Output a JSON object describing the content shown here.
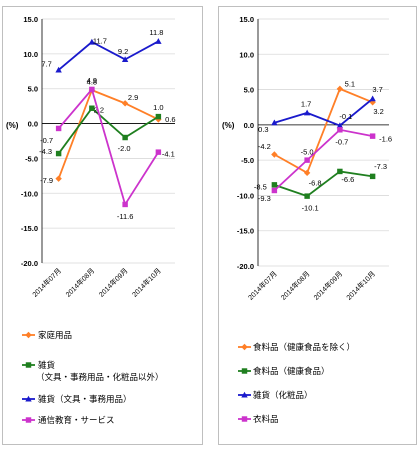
{
  "chart_data": [
    {
      "type": "line",
      "ylabel": "(%)",
      "ylim": [
        -20.0,
        15.0
      ],
      "y_ticks": [
        "15.0",
        "10.0",
        "5.0",
        "0.0",
        "-5.0",
        "-10.0",
        "-15.0",
        "-20.0"
      ],
      "categories": [
        "2014年07月",
        "2014年08月",
        "2014年09月",
        "2014年10月"
      ],
      "series": [
        {
          "name": "家庭用品",
          "color": "#ff7f27",
          "marker": "diamond",
          "values": [
            -7.9,
            4.8,
            2.9,
            0.6
          ],
          "labels": [
            "-7.9",
            "4.8",
            "2.9",
            "0.6"
          ]
        },
        {
          "name": "雑貨（文具・事務用品・化粧品以外）",
          "color": "#1f7f1f",
          "marker": "square",
          "values": [
            -4.3,
            2.2,
            -2.0,
            1.0
          ],
          "labels": [
            "-4.3",
            "2.2",
            "-2.0",
            "1.0"
          ]
        },
        {
          "name": "雑貨（文具・事務用品）",
          "color": "#1a1acc",
          "marker": "triangle",
          "values": [
            7.7,
            11.7,
            9.2,
            11.8
          ],
          "labels": [
            "7.7",
            "11.7",
            "9.2",
            "11.8"
          ]
        },
        {
          "name": "通信教育・サービス",
          "color": "#cc33cc",
          "marker": "square",
          "values": [
            -0.7,
            4.9,
            -11.6,
            -4.1
          ],
          "labels": [
            "-0.7",
            "4.9",
            "-11.6",
            "-4.1"
          ]
        }
      ]
    },
    {
      "type": "line",
      "ylabel": "(%)",
      "ylim": [
        -20.0,
        15.0
      ],
      "y_ticks": [
        "15.0",
        "10.0",
        "5.0",
        "0.0",
        "-5.0",
        "-10.0",
        "-15.0",
        "-20.0"
      ],
      "categories": [
        "2014年07月",
        "2014年08月",
        "2014年09月",
        "2014年10月"
      ],
      "series": [
        {
          "name": "食料品（健康食品を除く）",
          "color": "#ff7f27",
          "marker": "diamond",
          "values": [
            -4.2,
            -6.8,
            5.1,
            3.2
          ],
          "labels": [
            "-4.2",
            "-6.8",
            "5.1",
            "3.2"
          ]
        },
        {
          "name": "食料品（健康食品）",
          "color": "#1f7f1f",
          "marker": "square",
          "values": [
            -8.5,
            -10.1,
            -6.6,
            -7.3
          ],
          "labels": [
            "-8.5",
            "-10.1",
            "-6.6",
            "-7.3"
          ]
        },
        {
          "name": "雑貨（化粧品）",
          "color": "#1a1acc",
          "marker": "triangle",
          "values": [
            0.3,
            1.7,
            -0.1,
            3.7
          ],
          "labels": [
            "0.3",
            "1.7",
            "-0.1",
            "3.7"
          ]
        },
        {
          "name": "衣料品",
          "color": "#cc33cc",
          "marker": "square",
          "values": [
            -9.3,
            -5.0,
            -0.7,
            -1.6
          ],
          "labels": [
            "-9.3",
            "-5.0",
            "-0.7",
            "-1.6"
          ]
        }
      ]
    }
  ],
  "legends": [
    [
      "家庭用品",
      "雑貨\n（文具・事務用品・化粧品以外）",
      "雑貨（文具・事務用品）",
      "通信教育・サービス"
    ],
    [
      "食料品（健康食品を除く）",
      "食料品（健康食品）",
      "雑貨（化粧品）",
      "衣料品"
    ]
  ]
}
